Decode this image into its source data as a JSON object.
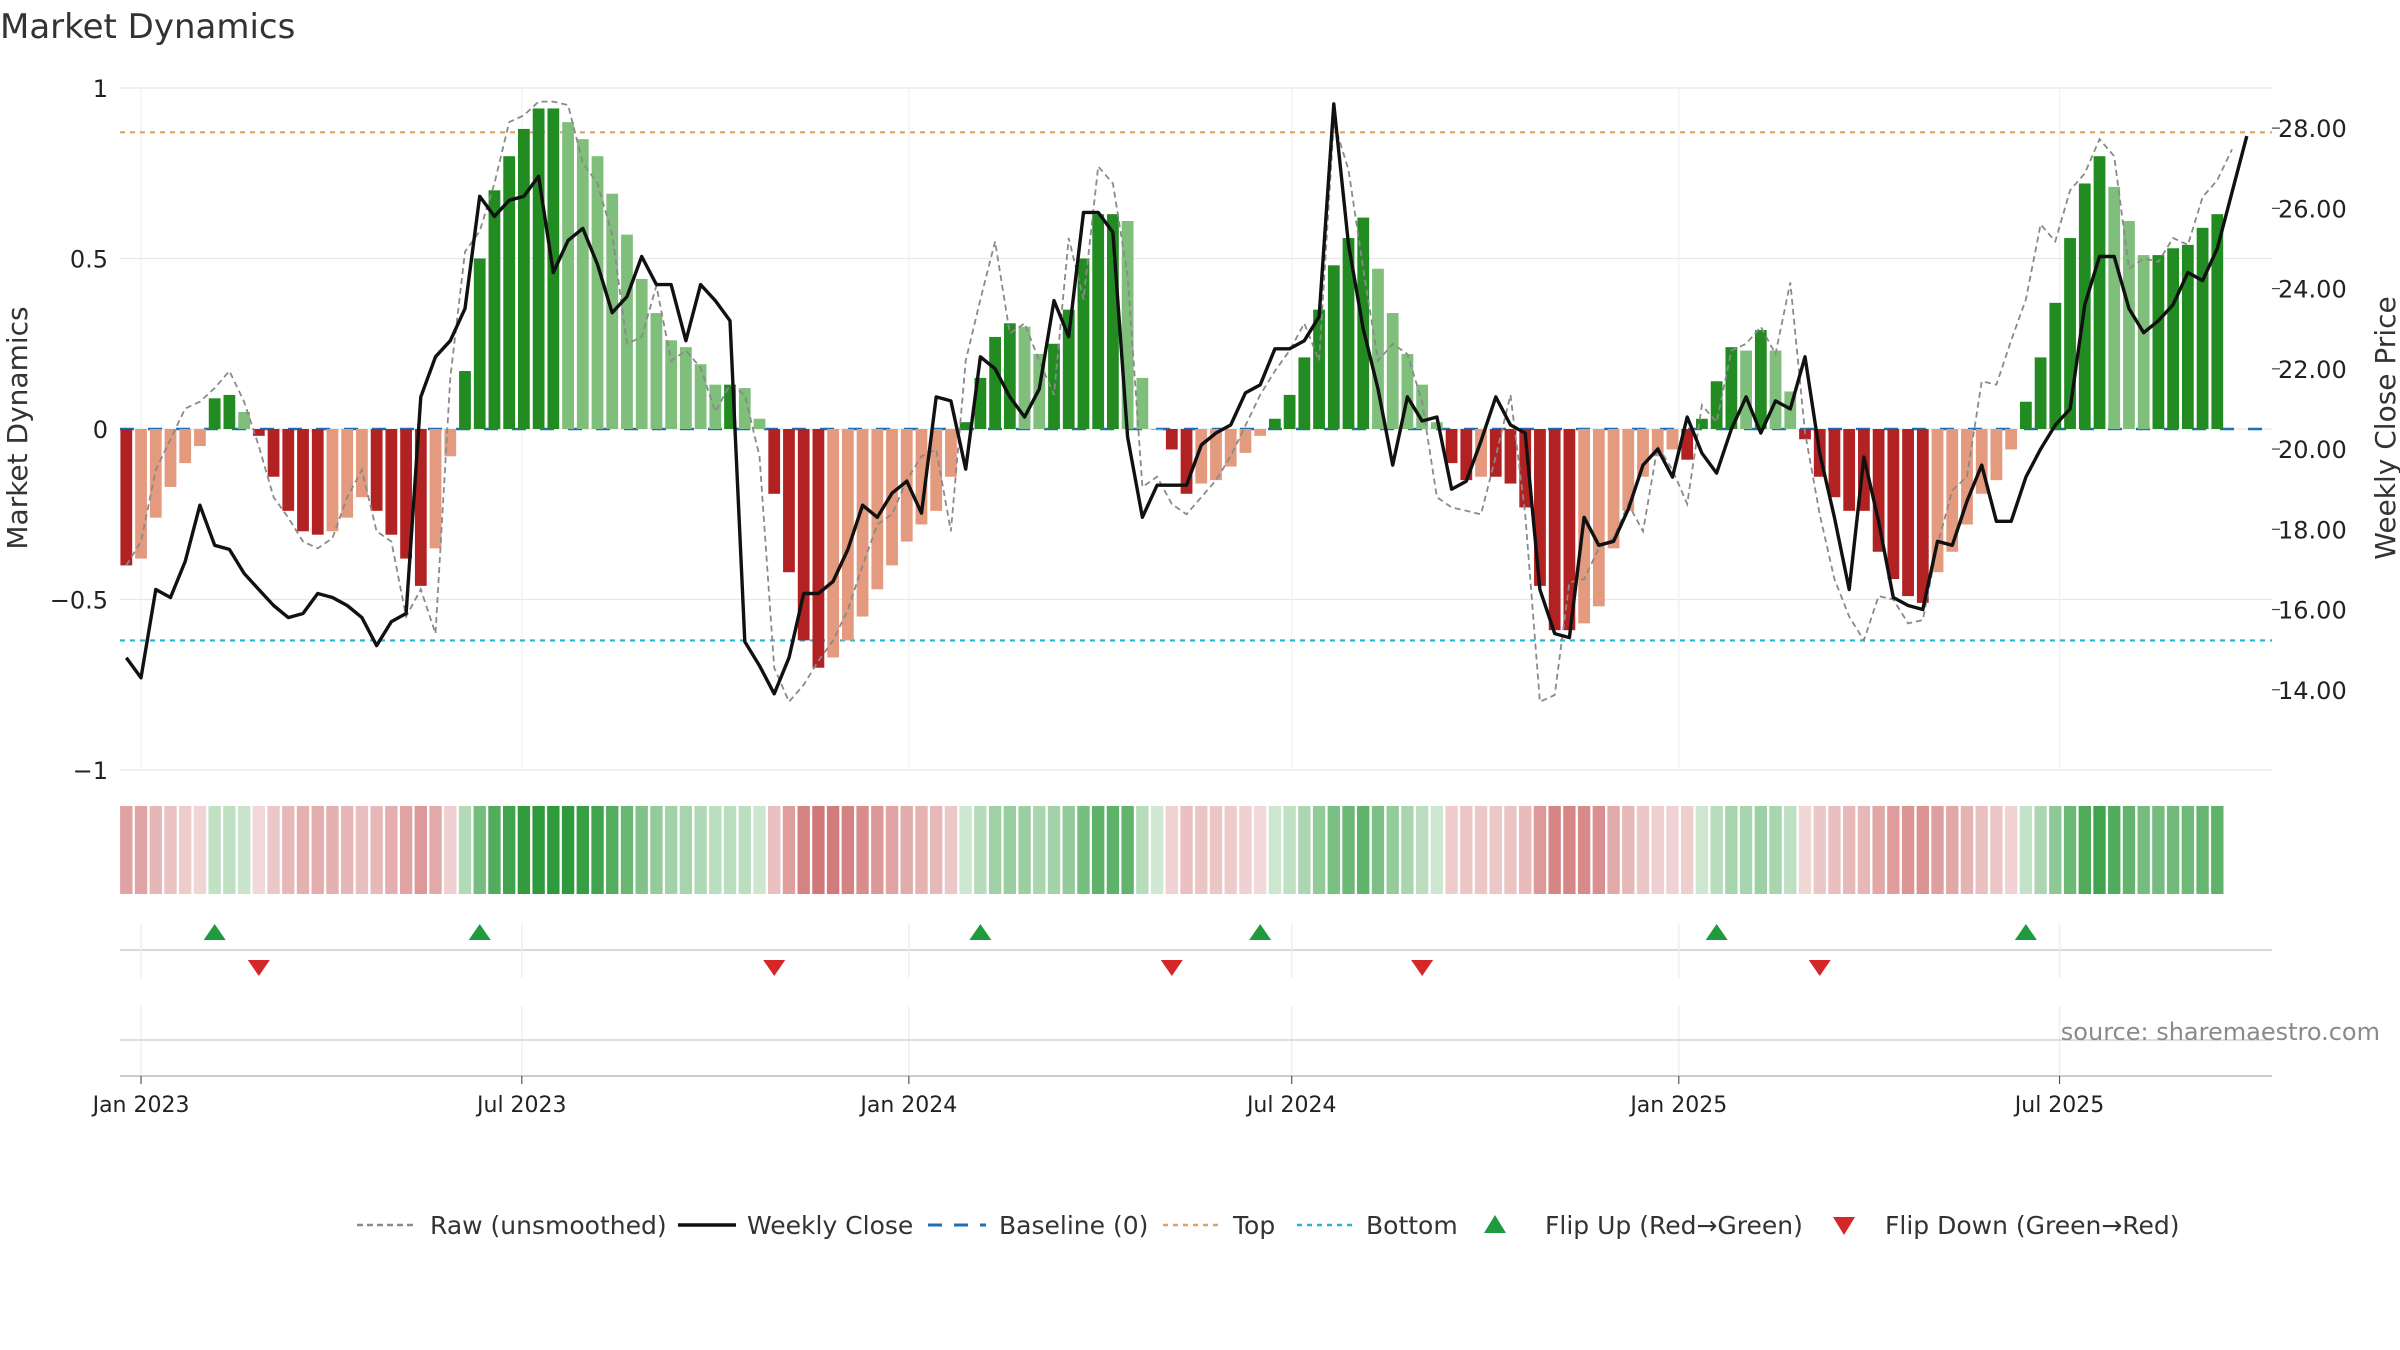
{
  "title": "Market Dynamics",
  "source": "source: sharemaestro.com",
  "colors": {
    "strong_green": "#228b22",
    "light_green": "#7fbf7b",
    "strong_red": "#b22222",
    "light_red": "#e39a7e",
    "top_line": "#e0a060",
    "bottom_line": "#22b5cc",
    "baseline": "#1f6fb4",
    "flip_up": "#1f9a3c",
    "flip_down": "#d62728"
  },
  "chart_data": {
    "type": "bar",
    "title": "Market Dynamics",
    "ylabel": "Market Dynamics",
    "y2label": "Weekly Close Price",
    "ylim": [
      -1,
      1
    ],
    "y2lim": [
      12.0,
      29.0
    ],
    "y_ticks": [
      1,
      0.5,
      0,
      -0.5,
      -1
    ],
    "y_tick_labels": [
      "1",
      "0.5",
      "0",
      "−0.5",
      "−1"
    ],
    "y2_ticks": [
      28,
      26,
      24,
      22,
      20,
      18,
      16,
      14
    ],
    "y2_tick_labels": [
      "28.00",
      "26.00",
      "24.00",
      "22.00",
      "20.00",
      "18.00",
      "16.00",
      "14.00"
    ],
    "x_ticks": [
      "2023-01-01",
      "2023-07-01",
      "2024-01-01",
      "2024-07-01",
      "2025-01-01",
      "2025-07-01"
    ],
    "x_tick_labels": [
      "Jan 2023",
      "Jul 2023",
      "Jan 2024",
      "Jul 2024",
      "Jan 2025",
      "Jul 2025"
    ],
    "x_range": [
      "2022-12-22",
      "2025-10-10"
    ],
    "first_week": "2022-12-25",
    "top_level": 0.87,
    "bottom_level": -0.62,
    "baseline": 0,
    "grid": true,
    "legend_position": "bottom",
    "dynamics": [
      -0.4,
      -0.38,
      -0.26,
      -0.17,
      -0.1,
      -0.05,
      0.09,
      0.1,
      0.05,
      -0.02,
      -0.14,
      -0.24,
      -0.3,
      -0.31,
      -0.3,
      -0.26,
      -0.2,
      -0.24,
      -0.31,
      -0.38,
      -0.46,
      -0.35,
      -0.08,
      0.17,
      0.5,
      0.7,
      0.8,
      0.88,
      0.94,
      0.94,
      0.9,
      0.85,
      0.8,
      0.69,
      0.57,
      0.44,
      0.34,
      0.26,
      0.24,
      0.19,
      0.13,
      0.13,
      0.12,
      0.03,
      -0.19,
      -0.42,
      -0.62,
      -0.7,
      -0.67,
      -0.62,
      -0.55,
      -0.47,
      -0.4,
      -0.33,
      -0.28,
      -0.24,
      -0.14,
      0.02,
      0.15,
      0.27,
      0.31,
      0.3,
      0.22,
      0.25,
      0.35,
      0.5,
      0.63,
      0.63,
      0.61,
      0.15,
      0.0,
      -0.06,
      -0.19,
      -0.16,
      -0.15,
      -0.11,
      -0.07,
      -0.02,
      0.03,
      0.1,
      0.21,
      0.35,
      0.48,
      0.56,
      0.62,
      0.47,
      0.34,
      0.22,
      0.13,
      0.02,
      -0.1,
      -0.15,
      -0.14,
      -0.14,
      -0.16,
      -0.23,
      -0.46,
      -0.59,
      -0.59,
      -0.57,
      -0.52,
      -0.35,
      -0.24,
      -0.14,
      -0.08,
      -0.06,
      -0.09,
      0.03,
      0.14,
      0.24,
      0.23,
      0.29,
      0.23,
      0.11,
      -0.03,
      -0.14,
      -0.2,
      -0.24,
      -0.24,
      -0.36,
      -0.44,
      -0.49,
      -0.51,
      -0.42,
      -0.36,
      -0.28,
      -0.19,
      -0.15,
      -0.06,
      0.08,
      0.21,
      0.37,
      0.56,
      0.72,
      0.8,
      0.71,
      0.61,
      0.51,
      0.51,
      0.53,
      0.54,
      0.59,
      0.63
    ],
    "raw": [
      -0.4,
      -0.33,
      -0.12,
      -0.03,
      0.06,
      0.08,
      0.12,
      0.17,
      0.08,
      -0.05,
      -0.2,
      -0.26,
      -0.33,
      -0.35,
      -0.32,
      -0.2,
      -0.12,
      -0.3,
      -0.33,
      -0.55,
      -0.47,
      -0.6,
      0.15,
      0.52,
      0.58,
      0.72,
      0.9,
      0.92,
      0.96,
      0.96,
      0.95,
      0.78,
      0.72,
      0.57,
      0.25,
      0.27,
      0.42,
      0.2,
      0.23,
      0.18,
      0.05,
      0.13,
      0.1,
      -0.08,
      -0.7,
      -0.8,
      -0.75,
      -0.68,
      -0.62,
      -0.53,
      -0.4,
      -0.28,
      -0.25,
      -0.15,
      -0.08,
      -0.06,
      -0.3,
      0.2,
      0.38,
      0.55,
      0.28,
      0.31,
      0.2,
      0.1,
      0.56,
      0.38,
      0.77,
      0.72,
      0.45,
      -0.17,
      -0.14,
      -0.22,
      -0.25,
      -0.2,
      -0.15,
      -0.08,
      0.01,
      0.1,
      0.17,
      0.23,
      0.31,
      0.2,
      0.9,
      0.76,
      0.47,
      0.2,
      0.25,
      0.22,
      0.08,
      -0.2,
      -0.23,
      -0.24,
      -0.25,
      -0.08,
      0.1,
      -0.25,
      -0.8,
      -0.78,
      -0.45,
      -0.44,
      -0.35,
      -0.32,
      -0.22,
      -0.3,
      -0.05,
      -0.12,
      -0.22,
      0.07,
      0.02,
      0.23,
      0.25,
      0.3,
      0.22,
      0.43,
      -0.01,
      -0.25,
      -0.44,
      -0.55,
      -0.62,
      -0.49,
      -0.5,
      -0.57,
      -0.56,
      -0.34,
      -0.18,
      -0.14,
      0.14,
      0.13,
      0.26,
      0.38,
      0.6,
      0.55,
      0.7,
      0.75,
      0.85,
      0.8,
      0.47,
      0.5,
      0.49,
      0.56,
      0.54,
      0.68,
      0.73,
      0.82
    ],
    "weekly_close": [
      14.8,
      14.3,
      16.5,
      16.3,
      17.2,
      18.6,
      17.6,
      17.5,
      16.9,
      16.5,
      16.1,
      15.8,
      15.9,
      16.4,
      16.3,
      16.1,
      15.8,
      15.1,
      15.7,
      15.9,
      21.3,
      22.3,
      22.7,
      23.5,
      26.3,
      25.8,
      26.2,
      26.3,
      26.8,
      24.4,
      25.2,
      25.5,
      24.6,
      23.4,
      23.8,
      24.8,
      24.1,
      24.1,
      22.7,
      24.1,
      23.7,
      23.2,
      15.2,
      14.6,
      13.9,
      14.8,
      16.4,
      16.4,
      16.7,
      17.5,
      18.6,
      18.3,
      18.9,
      19.2,
      18.4,
      21.3,
      21.2,
      19.5,
      22.3,
      22.0,
      21.3,
      20.8,
      21.5,
      23.7,
      22.8,
      25.9,
      25.9,
      25.4,
      20.3,
      18.3,
      19.1,
      19.1,
      19.1,
      20.1,
      20.4,
      20.6,
      21.4,
      21.6,
      22.5,
      22.5,
      22.7,
      23.3,
      28.6,
      25.1,
      23.0,
      21.5,
      19.6,
      21.3,
      20.7,
      20.8,
      19.0,
      19.2,
      20.2,
      21.3,
      20.6,
      20.4,
      16.5,
      15.4,
      15.3,
      18.3,
      17.6,
      17.7,
      18.5,
      19.6,
      20.0,
      19.3,
      20.8,
      19.9,
      19.4,
      20.5,
      21.3,
      20.4,
      21.2,
      21.0,
      22.3,
      19.9,
      18.3,
      16.5,
      19.8,
      18.2,
      16.3,
      16.1,
      16.0,
      17.7,
      17.6,
      18.7,
      19.6,
      18.2,
      18.2,
      19.3,
      20.0,
      20.6,
      21.0,
      23.6,
      24.8,
      24.8,
      23.5,
      22.9,
      23.2,
      23.6,
      24.4,
      24.2,
      25.0,
      26.4,
      27.8
    ],
    "flip_up": [
      "2023-02-05",
      "2023-06-11",
      "2024-02-04",
      "2024-06-16",
      "2025-01-19",
      "2025-06-15"
    ],
    "flip_down": [
      "2023-02-26",
      "2023-10-29",
      "2024-05-05",
      "2024-09-01",
      "2025-03-09"
    ],
    "legend": [
      {
        "key": "raw",
        "label": "Raw (unsmoothed)"
      },
      {
        "key": "close",
        "label": "Weekly Close"
      },
      {
        "key": "baseline",
        "label": "Baseline (0)"
      },
      {
        "key": "top",
        "label": "Top"
      },
      {
        "key": "bottom",
        "label": "Bottom"
      },
      {
        "key": "up",
        "label": "Flip Up (Red→Green)"
      },
      {
        "key": "down",
        "label": "Flip Down (Green→Red)"
      }
    ]
  }
}
